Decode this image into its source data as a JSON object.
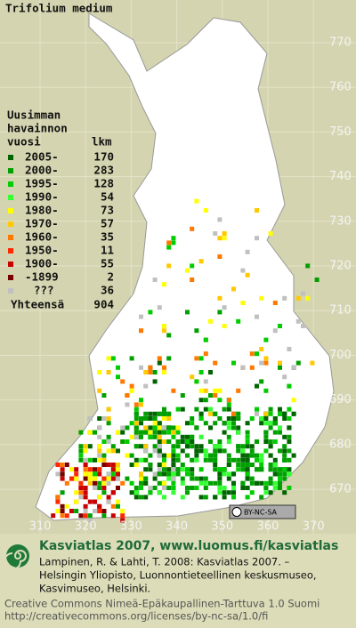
{
  "title": "Trifolium medium",
  "legend": {
    "heading": [
      "Uusimman",
      "havainnon",
      "vuosi"
    ],
    "count_heading": "lkm",
    "rows": [
      {
        "label": "2005-",
        "count": 170,
        "color": "#006400"
      },
      {
        "label": "2000-",
        "count": 283,
        "color": "#00a000"
      },
      {
        "label": "1995-",
        "count": 128,
        "color": "#00cc00"
      },
      {
        "label": "1990-",
        "count": 54,
        "color": "#33ff33"
      },
      {
        "label": "1980-",
        "count": 73,
        "color": "#ffff00"
      },
      {
        "label": "1970-",
        "count": 57,
        "color": "#ffc800"
      },
      {
        "label": "1960-",
        "count": 35,
        "color": "#ff7800"
      },
      {
        "label": "1950-",
        "count": 11,
        "color": "#ff2800"
      },
      {
        "label": "1900-",
        "count": 55,
        "color": "#c80000"
      },
      {
        "label": "-1899",
        "count": 2,
        "color": "#780000"
      },
      {
        "label": "???",
        "count": 36,
        "color": "#c0c0c0"
      }
    ],
    "total": {
      "label": "Yhteensä",
      "count": 904
    }
  },
  "axes": {
    "right": [
      "770",
      "760",
      "750",
      "740",
      "730",
      "720",
      "710",
      "700",
      "690",
      "680",
      "670"
    ],
    "bottom": [
      "310",
      "320",
      "330",
      "340",
      "350",
      "360",
      "370"
    ]
  },
  "license_badge": "BY-NC-SA",
  "footer": {
    "title": "Kasviatlas 2007, www.luomus.fi/kasviatlas",
    "citation": [
      "Lampinen, R. & Lahti, T. 2008: Kasviatlas 2007. –",
      "Helsingin Yliopisto, Luonnontieteellinen keskusmuseo,",
      "Kasvimuseo, Helsinki."
    ],
    "license": [
      "Creative Commons Nimeä-Epäkaupallinen-Tarttuva 1.0 Suomi",
      "http://creativecommons.org/licenses/by-nc-sa/1.0/fi"
    ]
  }
}
